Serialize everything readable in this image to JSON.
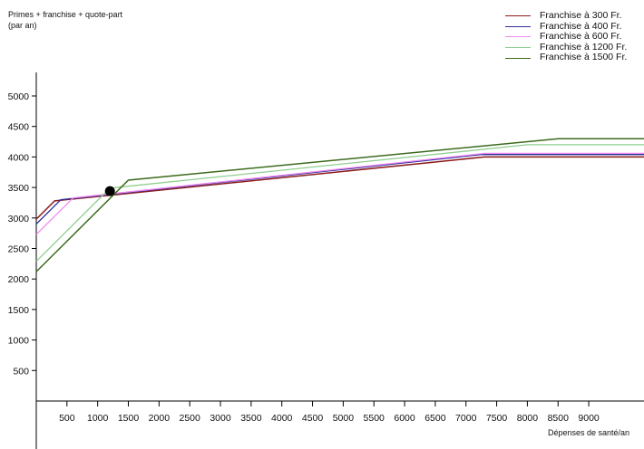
{
  "chart_data": {
    "type": "line",
    "ylabel_lines": [
      "Primes + franchise + quote-part",
      "(par an)"
    ],
    "xlabel": "Dépenses de santé/an",
    "x_ticks": [
      500,
      1000,
      1500,
      2000,
      2500,
      3000,
      3500,
      4000,
      4500,
      5000,
      5500,
      6000,
      6500,
      7000,
      7500,
      8000,
      8500,
      9000
    ],
    "y_ticks": [
      500,
      1000,
      1500,
      2000,
      2500,
      3000,
      3500,
      4000,
      4500,
      5000
    ],
    "xlim": [
      0,
      9900
    ],
    "ylim": [
      0,
      5500
    ],
    "legend_position": "top-right",
    "series": [
      {
        "name": "Franchise à 300 Fr.",
        "color": "#8b1a1a",
        "points": [
          [
            0,
            2980
          ],
          [
            300,
            3280
          ],
          [
            7300,
            4000
          ],
          [
            9900,
            4000
          ]
        ]
      },
      {
        "name": "Franchise à 400 Fr.",
        "color": "#2e2e9e",
        "points": [
          [
            0,
            2900
          ],
          [
            400,
            3300
          ],
          [
            7250,
            4040
          ],
          [
            9900,
            4040
          ]
        ]
      },
      {
        "name": "Franchise à 600 Fr.",
        "color": "#f08cf0",
        "points": [
          [
            0,
            2730
          ],
          [
            600,
            3330
          ],
          [
            7300,
            4060
          ],
          [
            9900,
            4060
          ]
        ]
      },
      {
        "name": "Franchise à 1200 Fr.",
        "color": "#8fce8f",
        "points": [
          [
            0,
            2290
          ],
          [
            1200,
            3490
          ],
          [
            8000,
            4200
          ],
          [
            9900,
            4200
          ]
        ]
      },
      {
        "name": "Franchise à 1500 Fr.",
        "color": "#3d6b1e",
        "points": [
          [
            0,
            2120
          ],
          [
            1500,
            3620
          ],
          [
            8500,
            4300
          ],
          [
            9900,
            4300
          ]
        ]
      }
    ],
    "marker": {
      "x": 1200,
      "y": 3440,
      "color": "#000000"
    }
  }
}
